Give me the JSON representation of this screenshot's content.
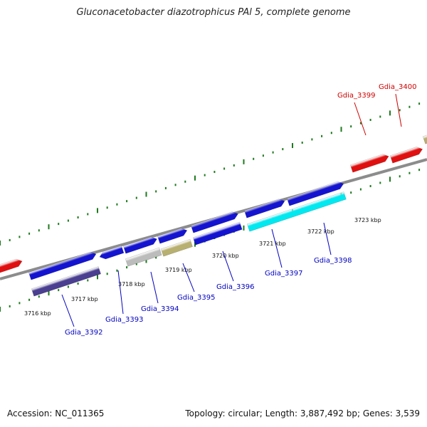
{
  "title": "Gluconacetobacter diazotrophicus PAl 5, complete genome",
  "footer": {
    "accession": "Accession: NC_011365",
    "summary": "Topology: circular; Length: 3,887,492 bp; Genes: 3,539"
  },
  "colors": {
    "backbone": "#8c8c8c",
    "tick": "#1e7a1e",
    "blue_gene": "#1414d0",
    "red_gene": "#e01010",
    "cyan_gene": "#00e8f0",
    "olive_gene": "#b8b070",
    "gray_gene": "#bcbcbc",
    "navy_gene": "#4a3f90",
    "blue_label": "#0000c0",
    "red_label": "#d00000"
  },
  "scale_labels": [
    "3716 kbp",
    "3717 kbp",
    "3718 kbp",
    "3719 kbp",
    "3720 kbp",
    "3721 kbp",
    "3722 kbp",
    "3723 kbp"
  ],
  "gene_labels": [
    {
      "id": "g3392",
      "text": "Gdia_3392",
      "color": "blue"
    },
    {
      "id": "g3393",
      "text": "Gdia_3393",
      "color": "blue"
    },
    {
      "id": "g3394",
      "text": "Gdia_3394",
      "color": "blue"
    },
    {
      "id": "g3395",
      "text": "Gdia_3395",
      "color": "blue"
    },
    {
      "id": "g3396",
      "text": "Gdia_3396",
      "color": "blue"
    },
    {
      "id": "g3397",
      "text": "Gdia_3397",
      "color": "blue"
    },
    {
      "id": "g3398",
      "text": "Gdia_3398",
      "color": "blue"
    },
    {
      "id": "g3399",
      "text": "Gdia_3399",
      "color": "red"
    },
    {
      "id": "g3400",
      "text": "Gdia_3400",
      "color": "red"
    }
  ]
}
